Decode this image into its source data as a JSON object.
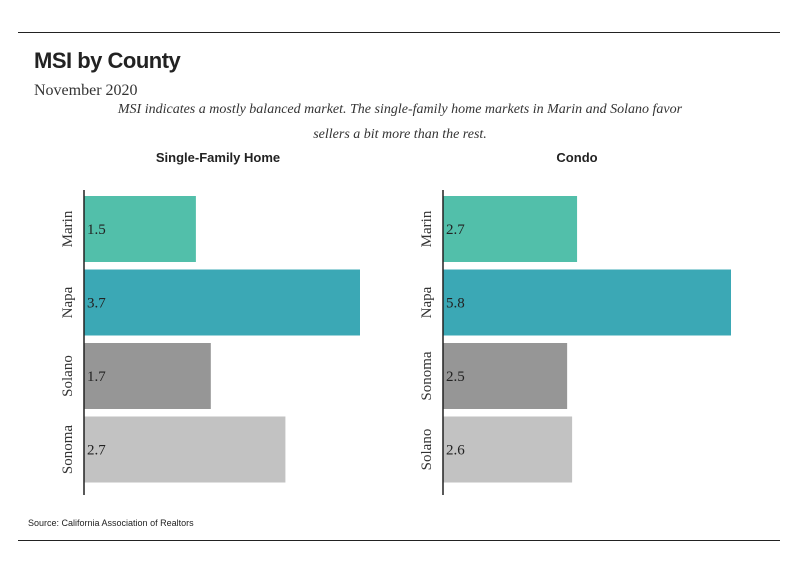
{
  "header": {
    "title": "MSI by County",
    "subtitle": "November 2020",
    "caption": "MSI indicates a mostly balanced market. The single-family home markets in Marin and Solano favor sellers a bit more than the rest."
  },
  "footer": {
    "source": "Source:  California Association of Realtors"
  },
  "chart_data": [
    {
      "type": "bar",
      "orientation": "horizontal",
      "title": "Single-Family Home",
      "categories": [
        "Marin",
        "Napa",
        "Solano",
        "Sonoma"
      ],
      "values": [
        1.5,
        3.7,
        1.7,
        2.7
      ],
      "value_labels": [
        "1.5",
        "3.7",
        "1.7",
        "2.7"
      ],
      "colors": [
        "#52bfaa",
        "#3ba8b5",
        "#969696",
        "#c2c2c2"
      ],
      "xlim": [
        0,
        3.7
      ],
      "grid": false,
      "legend": "none"
    },
    {
      "type": "bar",
      "orientation": "horizontal",
      "title": "Condo",
      "categories": [
        "Marin",
        "Napa",
        "Sonoma",
        "Solano"
      ],
      "values": [
        2.7,
        5.8,
        2.5,
        2.6
      ],
      "value_labels": [
        "2.7",
        "5.8",
        "2.5",
        "2.6"
      ],
      "colors": [
        "#52bfaa",
        "#3ba8b5",
        "#969696",
        "#c2c2c2"
      ],
      "xlim": [
        0,
        5.8
      ],
      "grid": false,
      "legend": "none"
    }
  ]
}
